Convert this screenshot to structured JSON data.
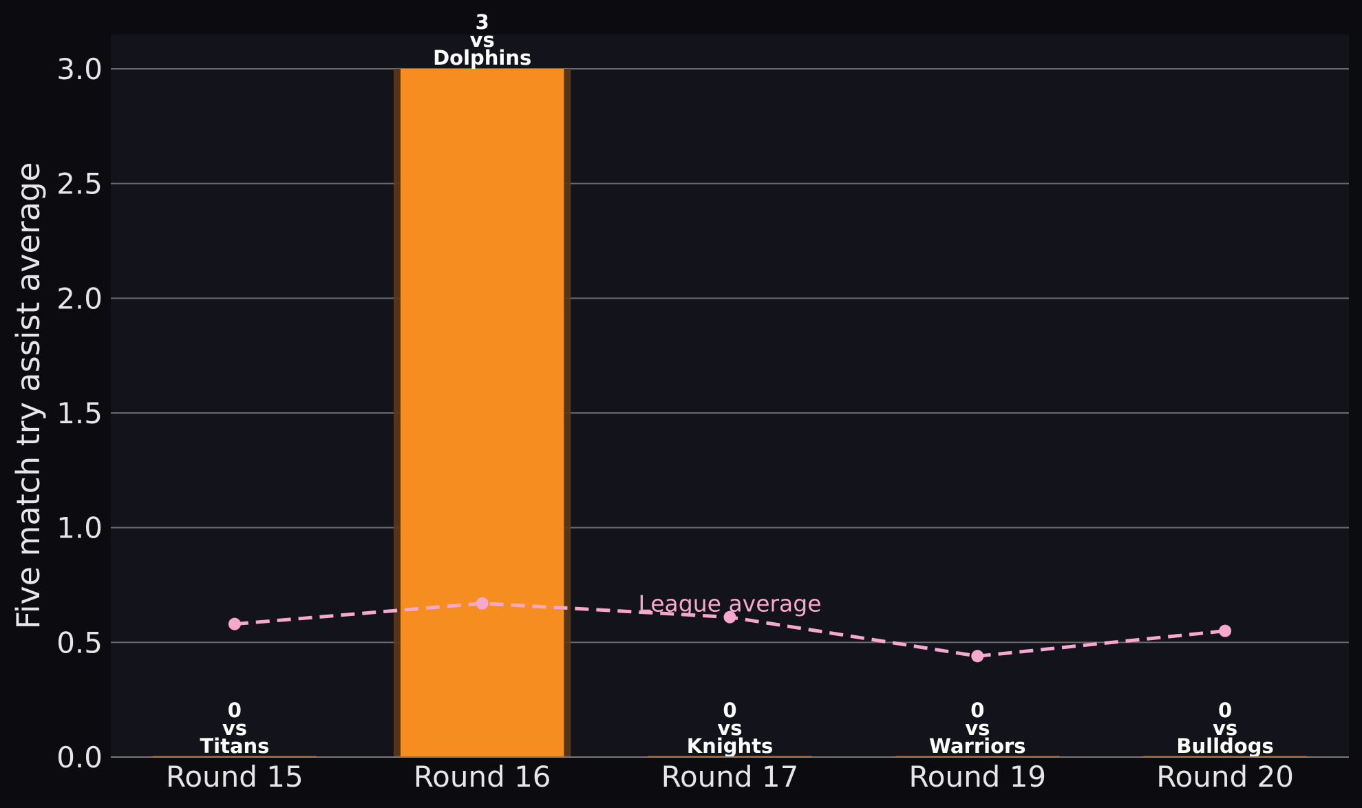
{
  "chart_data": {
    "type": "bar",
    "categories": [
      "Round 15",
      "Round 16",
      "Round 17",
      "Round 19",
      "Round 20"
    ],
    "values": [
      0,
      3,
      0,
      0,
      0
    ],
    "opponents": [
      "Titans",
      "Dolphins",
      "Knights",
      "Warriors",
      "Bulldogs"
    ],
    "vs_text": "vs",
    "title": "",
    "xlabel": "",
    "ylabel": "Five match try assist average",
    "ylim": [
      0,
      3.15
    ],
    "yticks": [
      "0.0",
      "0.5",
      "1.0",
      "1.5",
      "2.0",
      "2.5",
      "3.0"
    ],
    "grid": true,
    "highlight_index": 1,
    "line_series": {
      "name": "League average",
      "values": [
        0.58,
        0.67,
        0.61,
        0.44,
        0.55
      ],
      "style": "dashed"
    },
    "colors": {
      "background": "#0c0c10",
      "plot_background": "#13131b",
      "bar": "#f68d20",
      "bar_glow": "#5a3a1c",
      "grid": "#6b6b6b",
      "line": "#f7a8cf",
      "text": "#e6e6e6"
    }
  }
}
